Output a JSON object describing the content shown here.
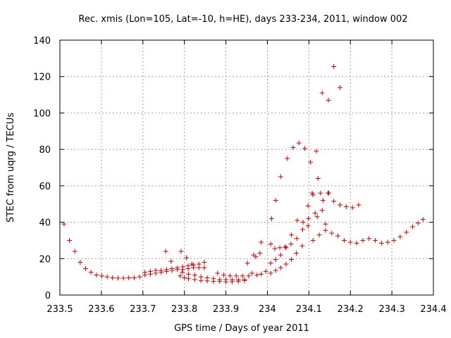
{
  "chart_data": {
    "type": "scatter",
    "title": "Rec. xmis (Lon=105, Lat=-10, h=HE), days 233-234, 2011, window 002",
    "xlabel": "GPS time / Days of year 2011",
    "ylabel": "STEC from uqrg / TECUs",
    "xlim": [
      233.5,
      234.4
    ],
    "ylim": [
      0,
      140
    ],
    "xticks": [
      233.5,
      233.6,
      233.7,
      233.8,
      233.9,
      234.0,
      234.1,
      234.2,
      234.3,
      234.4
    ],
    "xtick_labels": [
      "233.5",
      "233.6",
      "233.7",
      "233.8",
      "233.9",
      "234",
      "234.1",
      "234.2",
      "234.3",
      "234.4"
    ],
    "yticks": [
      0,
      20,
      40,
      60,
      80,
      100,
      120,
      140
    ],
    "ytick_labels": [
      "0",
      "20",
      "40",
      "60",
      "80",
      "100",
      "120",
      "140"
    ],
    "grid": true,
    "marker": "plus",
    "color": "#cc0000",
    "points": [
      [
        233.51,
        39
      ],
      [
        233.523,
        30
      ],
      [
        233.536,
        24
      ],
      [
        233.549,
        18
      ],
      [
        233.562,
        14.5
      ],
      [
        233.575,
        12.5
      ],
      [
        233.588,
        11
      ],
      [
        233.601,
        10.5
      ],
      [
        233.614,
        10
      ],
      [
        233.627,
        9.5
      ],
      [
        233.64,
        9.3
      ],
      [
        233.653,
        9.3
      ],
      [
        233.666,
        9.5
      ],
      [
        233.679,
        9.5
      ],
      [
        233.692,
        10
      ],
      [
        233.705,
        11
      ],
      [
        233.718,
        11.5
      ],
      [
        233.731,
        12
      ],
      [
        233.744,
        12.5
      ],
      [
        233.757,
        13
      ],
      [
        233.77,
        13.5
      ],
      [
        233.783,
        14
      ],
      [
        233.796,
        14
      ],
      [
        233.809,
        14.5
      ],
      [
        233.822,
        15
      ],
      [
        233.835,
        15
      ],
      [
        233.848,
        15
      ],
      [
        233.705,
        12.5
      ],
      [
        233.718,
        13
      ],
      [
        233.731,
        13.5
      ],
      [
        233.744,
        13.5
      ],
      [
        233.757,
        14
      ],
      [
        233.77,
        14.5
      ],
      [
        233.783,
        15
      ],
      [
        233.796,
        15.5
      ],
      [
        233.809,
        16
      ],
      [
        233.822,
        16.5
      ],
      [
        233.835,
        17
      ],
      [
        233.848,
        18
      ],
      [
        233.755,
        24
      ],
      [
        233.768,
        18.5
      ],
      [
        233.792,
        24
      ],
      [
        233.805,
        20.5
      ],
      [
        233.818,
        17
      ],
      [
        233.79,
        10.5
      ],
      [
        233.8,
        9.5
      ],
      [
        233.81,
        9
      ],
      [
        233.825,
        8.5
      ],
      [
        233.84,
        8
      ],
      [
        233.855,
        7.8
      ],
      [
        233.87,
        7.5
      ],
      [
        233.885,
        7.5
      ],
      [
        233.9,
        7.3
      ],
      [
        233.915,
        7.3
      ],
      [
        233.93,
        7.5
      ],
      [
        233.945,
        8
      ],
      [
        233.795,
        12.5
      ],
      [
        233.81,
        11.5
      ],
      [
        233.825,
        11
      ],
      [
        233.84,
        10
      ],
      [
        233.855,
        9.5
      ],
      [
        233.87,
        9
      ],
      [
        233.885,
        8.5
      ],
      [
        233.9,
        8.5
      ],
      [
        233.915,
        8.3
      ],
      [
        233.93,
        8.3
      ],
      [
        233.945,
        8.5
      ],
      [
        233.88,
        12
      ],
      [
        233.895,
        11
      ],
      [
        233.91,
        10.5
      ],
      [
        233.925,
        10.5
      ],
      [
        233.94,
        10.5
      ],
      [
        233.955,
        10.5
      ],
      [
        233.952,
        17.5
      ],
      [
        233.963,
        12
      ],
      [
        233.967,
        22
      ],
      [
        233.972,
        21
      ],
      [
        233.982,
        23
      ],
      [
        233.985,
        29
      ],
      [
        233.975,
        11
      ],
      [
        233.985,
        11.5
      ],
      [
        233.996,
        13
      ],
      [
        234.01,
        42
      ],
      [
        234.02,
        52
      ],
      [
        234.032,
        65
      ],
      [
        234.048,
        75
      ],
      [
        234.062,
        81
      ],
      [
        234.076,
        83.5
      ],
      [
        234.09,
        80.5
      ],
      [
        234.104,
        73
      ],
      [
        234.118,
        79
      ],
      [
        234.132,
        111
      ],
      [
        234.147,
        107
      ],
      [
        234.16,
        125.5
      ],
      [
        234.175,
        114
      ],
      [
        234.008,
        28
      ],
      [
        234.018,
        25.5
      ],
      [
        234.03,
        26
      ],
      [
        234.043,
        26.5
      ],
      [
        234.057,
        28
      ],
      [
        234.071,
        31
      ],
      [
        234.085,
        36
      ],
      [
        234.099,
        42
      ],
      [
        234.11,
        55
      ],
      [
        234.122,
        64
      ],
      [
        234.134,
        52
      ],
      [
        234.148,
        56
      ],
      [
        234.16,
        51.5
      ],
      [
        234.008,
        12
      ],
      [
        234.02,
        13.5
      ],
      [
        234.032,
        15
      ],
      [
        234.045,
        17
      ],
      [
        234.058,
        19.5
      ],
      [
        234.07,
        23
      ],
      [
        234.084,
        27
      ],
      [
        234.098,
        38
      ],
      [
        234.108,
        56
      ],
      [
        234.12,
        43
      ],
      [
        234.132,
        46.5
      ],
      [
        234.146,
        56
      ],
      [
        234.008,
        17.5
      ],
      [
        234.02,
        19.5
      ],
      [
        234.032,
        22
      ],
      [
        234.045,
        26
      ],
      [
        234.058,
        33
      ],
      [
        234.072,
        41
      ],
      [
        234.086,
        40
      ],
      [
        234.098,
        49
      ],
      [
        234.115,
        45
      ],
      [
        234.128,
        56
      ],
      [
        234.14,
        39
      ],
      [
        234.11,
        30
      ],
      [
        234.125,
        33
      ],
      [
        234.14,
        35.5
      ],
      [
        234.155,
        34
      ],
      [
        234.17,
        32.5
      ],
      [
        234.185,
        30
      ],
      [
        234.2,
        29
      ],
      [
        234.215,
        28.5
      ],
      [
        234.23,
        30
      ],
      [
        234.245,
        31
      ],
      [
        234.26,
        30
      ],
      [
        234.275,
        28.5
      ],
      [
        234.29,
        29
      ],
      [
        234.305,
        30
      ],
      [
        234.32,
        32
      ],
      [
        234.335,
        34.5
      ],
      [
        234.35,
        37.5
      ],
      [
        234.363,
        39.5
      ],
      [
        234.375,
        41.5
      ],
      [
        234.175,
        49.5
      ],
      [
        234.19,
        48.5
      ],
      [
        234.205,
        48
      ],
      [
        234.22,
        49.5
      ]
    ]
  }
}
